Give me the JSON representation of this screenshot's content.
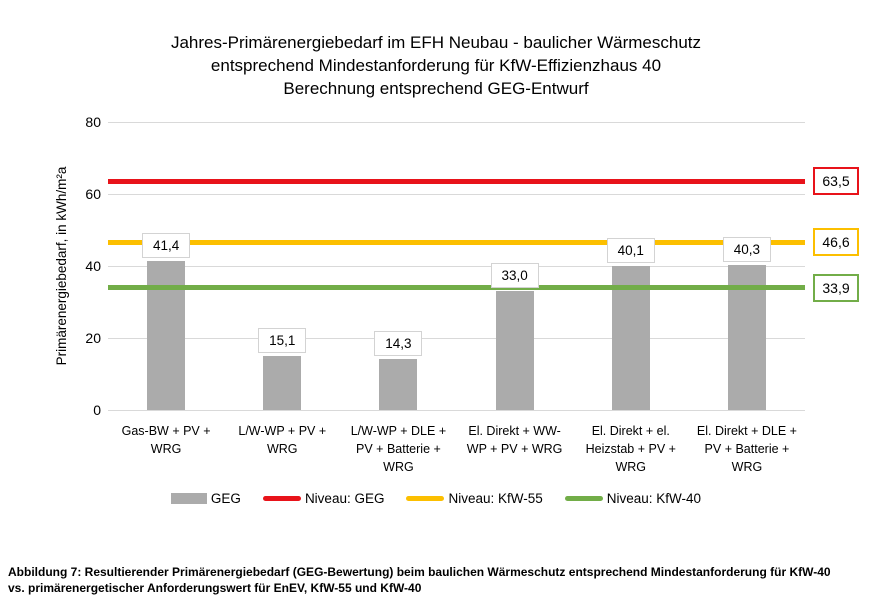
{
  "figure": {
    "title_lines": [
      "Jahres-Primärenergiebedarf im EFH Neubau - baulicher Wärmeschutz",
      "entsprechend Mindestanforderung für KfW-Effizienzhaus 40",
      "Berechnung entsprechend GEG-Entwurf"
    ],
    "caption_lines": [
      "Abbildung 7: Resultierender Primärenergiebedarf (GEG-Bewertung) beim baulichen Wärmeschutz entsprechend Mindestanforderung für KfW-40",
      "vs. primärenergetischer Anforderungswert für EnEV, KfW-55 und KfW-40"
    ]
  },
  "chart_data": {
    "type": "bar",
    "title": "Jahres-Primärenergiebedarf im EFH Neubau - baulicher Wärmeschutz entsprechend Mindestanforderung für KfW-Effizienzhaus 40 Berechnung entsprechend GEG-Entwurf",
    "ylabel": "Primärenergiebedarf, in kWh/m²a",
    "xlabel": "",
    "ylim": [
      0,
      80
    ],
    "yticks": [
      0,
      20,
      40,
      60,
      80
    ],
    "grid": true,
    "legend_position": "bottom",
    "series_name": "GEG",
    "bar_color": "#ababab",
    "categories": [
      "Gas-BW + PV +\nWRG",
      "L/W-WP + PV +\nWRG",
      "L/W-WP + DLE +\nPV + Batterie +\nWRG",
      "El. Direkt + WW-\nWP + PV + WRG",
      "El. Direkt + el.\nHeizstab + PV +\nWRG",
      "El. Direkt + DLE +\nPV + Batterie +\nWRG"
    ],
    "values": [
      41.4,
      15.1,
      14.3,
      33.0,
      40.1,
      40.3
    ],
    "value_labels": [
      "41,4",
      "15,1",
      "14,3",
      "33,0",
      "40,1",
      "40,3"
    ],
    "reference_lines": [
      {
        "name": "Niveau: GEG",
        "value": 63.5,
        "label": "63,5",
        "color": "#e8131a"
      },
      {
        "name": "Niveau: KfW-55",
        "value": 46.6,
        "label": "46,6",
        "color": "#fcbf00"
      },
      {
        "name": "Niveau: KfW-40",
        "value": 33.9,
        "label": "33,9",
        "color": "#72ad48"
      }
    ],
    "legend": [
      {
        "label": "GEG",
        "swatch": "bar",
        "color": "#ababab"
      },
      {
        "label": "Niveau: GEG",
        "swatch": "line",
        "color": "#e8131a"
      },
      {
        "label": "Niveau: KfW-55",
        "swatch": "line",
        "color": "#fcbf00"
      },
      {
        "label": "Niveau: KfW-40",
        "swatch": "line",
        "color": "#72ad48"
      }
    ]
  }
}
